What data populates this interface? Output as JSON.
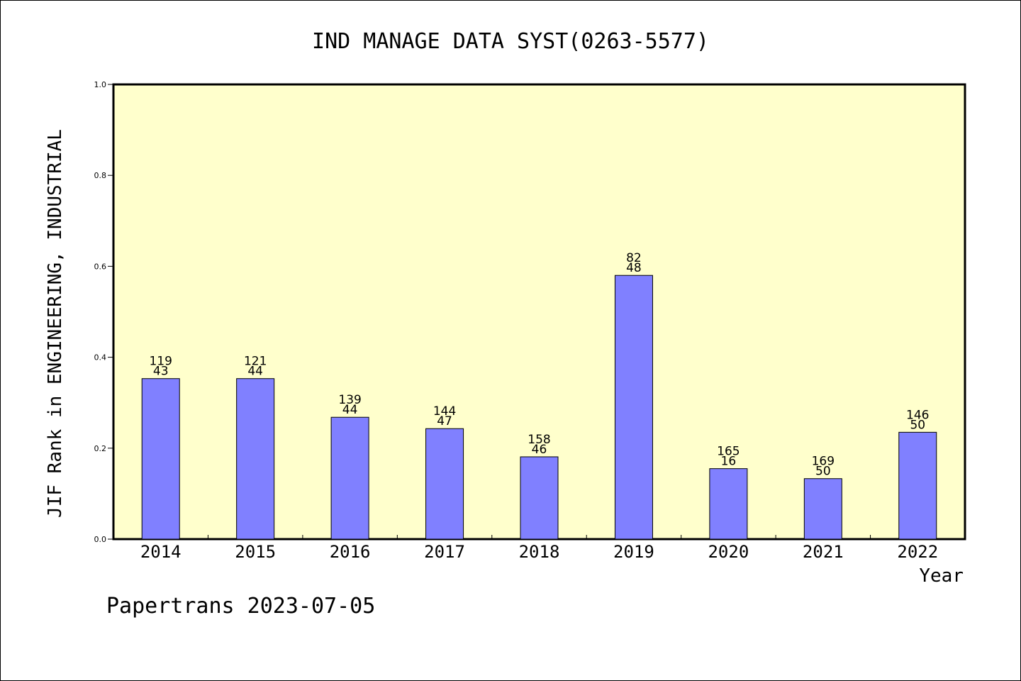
{
  "chart_data": {
    "type": "bar",
    "title": "IND MANAGE DATA SYST(0263-5577)",
    "xlabel": "Year",
    "ylabel": "JIF Rank in ENGINEERING, INDUSTRIAL",
    "ylim": [
      0,
      1.0
    ],
    "yticks": [
      "0.0",
      "0.2",
      "0.4",
      "0.6",
      "0.8",
      "1.0"
    ],
    "categories": [
      "2014",
      "2015",
      "2016",
      "2017",
      "2018",
      "2019",
      "2020",
      "2021",
      "2022"
    ],
    "values": [
      0.353,
      0.353,
      0.268,
      0.243,
      0.181,
      0.58,
      0.155,
      0.133,
      0.235
    ],
    "labels_top": [
      "119",
      "121",
      "139",
      "144",
      "158",
      "82",
      "165",
      "169",
      "146"
    ],
    "labels_bottom": [
      "43",
      "44",
      "44",
      "47",
      "46",
      "48",
      "16",
      "50",
      "50"
    ],
    "grid": false,
    "colors": {
      "plot_bg": "#ffffcc",
      "bar": "#8080ff",
      "bar_stroke": "#000000"
    }
  },
  "footer": "Papertrans 2023-07-05"
}
